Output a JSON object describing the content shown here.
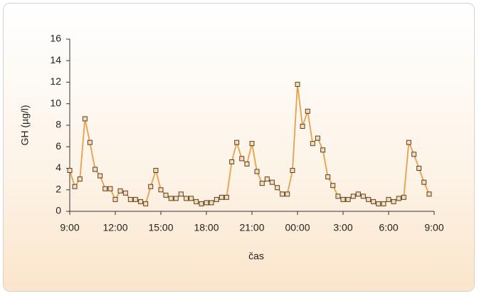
{
  "chart_data": {
    "type": "line",
    "x_label": "čas",
    "y_label": "GH (µg/l)",
    "xlim": [
      9,
      33
    ],
    "xticks": [
      {
        "value": 9,
        "label": "9:00"
      },
      {
        "value": 12,
        "label": "12:00"
      },
      {
        "value": 15,
        "label": "15:00"
      },
      {
        "value": 18,
        "label": "18:00"
      },
      {
        "value": 21,
        "label": "21:00"
      },
      {
        "value": 24,
        "label": "00:00"
      },
      {
        "value": 27,
        "label": "3:00"
      },
      {
        "value": 30,
        "label": "6:00"
      },
      {
        "value": 33,
        "label": "9:00"
      }
    ],
    "ylim": [
      0,
      16
    ],
    "yticks": [
      0,
      2,
      4,
      6,
      8,
      10,
      12,
      14,
      16
    ],
    "grid": false,
    "x": [
      9,
      9.33,
      9.67,
      10,
      10.33,
      10.67,
      11,
      11.33,
      11.67,
      12,
      12.33,
      12.67,
      13,
      13.33,
      13.67,
      14,
      14.33,
      14.67,
      15,
      15.33,
      15.67,
      16,
      16.33,
      16.67,
      17,
      17.33,
      17.67,
      18,
      18.33,
      18.67,
      19,
      19.33,
      19.67,
      20,
      20.33,
      20.67,
      21,
      21.33,
      21.67,
      22,
      22.33,
      22.67,
      23,
      23.33,
      23.67,
      24,
      24.33,
      24.67,
      25,
      25.33,
      25.67,
      26,
      26.33,
      26.67,
      27,
      27.33,
      27.67,
      28,
      28.33,
      28.67,
      29,
      29.33,
      29.67,
      30,
      30.33,
      30.67,
      31,
      31.33,
      31.67,
      32,
      32.33,
      32.67
    ],
    "series": [
      {
        "color": "#e8a04a",
        "marker_fill": "#f3dcb8",
        "marker_stroke": "#5a3e24",
        "values": [
          3.8,
          2.3,
          3.0,
          8.6,
          6.4,
          3.9,
          3.3,
          2.1,
          2.1,
          1.1,
          1.9,
          1.7,
          1.1,
          1.1,
          0.9,
          0.7,
          2.3,
          3.8,
          2.0,
          1.5,
          1.2,
          1.2,
          1.6,
          1.2,
          1.2,
          0.9,
          0.7,
          0.8,
          0.8,
          1.1,
          1.3,
          1.3,
          4.6,
          6.4,
          4.9,
          4.4,
          6.3,
          3.7,
          2.6,
          3.0,
          2.7,
          2.2,
          1.6,
          1.6,
          3.8,
          11.8,
          7.9,
          9.3,
          6.3,
          6.8,
          5.7,
          3.2,
          2.4,
          1.4,
          1.1,
          1.1,
          1.4,
          1.6,
          1.4,
          1.1,
          0.9,
          0.7,
          0.7,
          1.1,
          0.9,
          1.2,
          1.3,
          6.4,
          5.3,
          4.0,
          2.7,
          1.6
        ]
      }
    ]
  }
}
